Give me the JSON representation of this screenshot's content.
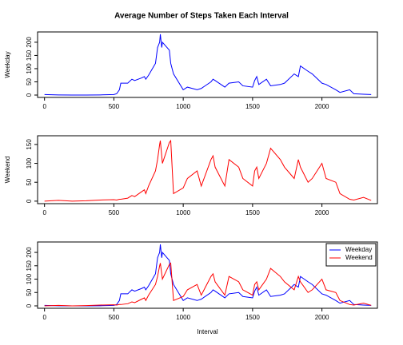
{
  "chart_data": [
    {
      "type": "line",
      "title": "Average Number of Steps Taken Each Interval",
      "y_label": "Weekday",
      "x": [
        0,
        100,
        200,
        300,
        400,
        500,
        520,
        540,
        550,
        600,
        630,
        650,
        700,
        720,
        730,
        750,
        800,
        815,
        830,
        835,
        845,
        850,
        900,
        910,
        930,
        1000,
        1030,
        1100,
        1130,
        1200,
        1215,
        1230,
        1300,
        1330,
        1400,
        1430,
        1500,
        1515,
        1530,
        1545,
        1600,
        1630,
        1700,
        1730,
        1800,
        1830,
        1845,
        1900,
        1930,
        2000,
        2030,
        2100,
        2130,
        2200,
        2230,
        2300,
        2355
      ],
      "values": [
        2,
        0.5,
        0,
        0,
        0.5,
        2,
        5,
        20,
        45,
        45,
        60,
        55,
        65,
        70,
        60,
        75,
        120,
        180,
        200,
        230,
        180,
        200,
        170,
        120,
        80,
        20,
        30,
        20,
        25,
        50,
        60,
        55,
        30,
        45,
        50,
        35,
        30,
        55,
        70,
        40,
        60,
        35,
        40,
        45,
        80,
        70,
        110,
        90,
        80,
        45,
        40,
        20,
        10,
        20,
        5,
        3,
        2
      ],
      "color": "#0000ff",
      "xlim": [
        -50,
        2400
      ],
      "xticks": [
        0,
        500,
        1000,
        1500,
        2000
      ],
      "ylim": [
        -9,
        239
      ],
      "yticks": [
        0,
        50,
        100,
        150,
        200
      ]
    },
    {
      "type": "line",
      "y_label": "Weekend",
      "x": [
        0,
        100,
        200,
        300,
        400,
        500,
        520,
        540,
        550,
        600,
        630,
        650,
        700,
        720,
        730,
        750,
        800,
        815,
        830,
        835,
        845,
        850,
        900,
        910,
        930,
        1000,
        1030,
        1100,
        1130,
        1200,
        1215,
        1230,
        1300,
        1330,
        1400,
        1430,
        1500,
        1515,
        1530,
        1545,
        1600,
        1630,
        1700,
        1730,
        1800,
        1830,
        1845,
        1900,
        1930,
        2000,
        2030,
        2100,
        2130,
        2200,
        2230,
        2300,
        2355
      ],
      "values": [
        0,
        2,
        0,
        1,
        3,
        4,
        3,
        5,
        5,
        8,
        15,
        12,
        25,
        30,
        20,
        40,
        80,
        110,
        150,
        160,
        120,
        100,
        155,
        160,
        20,
        35,
        60,
        80,
        40,
        110,
        120,
        90,
        40,
        110,
        90,
        60,
        40,
        80,
        90,
        60,
        100,
        140,
        110,
        90,
        60,
        110,
        90,
        50,
        60,
        100,
        60,
        50,
        20,
        5,
        3,
        10,
        2
      ],
      "color": "#ff0000",
      "xlim": [
        -50,
        2400
      ],
      "xticks": [
        0,
        500,
        1000,
        1500,
        2000
      ],
      "ylim": [
        -6.6,
        173
      ],
      "yticks": [
        0,
        50,
        100,
        150
      ]
    },
    {
      "type": "line",
      "x_label": "Interval",
      "legend": "topright",
      "x": [
        0,
        100,
        200,
        300,
        400,
        500,
        520,
        540,
        550,
        600,
        630,
        650,
        700,
        720,
        730,
        750,
        800,
        815,
        830,
        835,
        845,
        850,
        900,
        910,
        930,
        1000,
        1030,
        1100,
        1130,
        1200,
        1215,
        1230,
        1300,
        1330,
        1400,
        1430,
        1500,
        1515,
        1530,
        1545,
        1600,
        1630,
        1700,
        1730,
        1800,
        1830,
        1845,
        1900,
        1930,
        2000,
        2030,
        2100,
        2130,
        2200,
        2230,
        2300,
        2355
      ],
      "series": [
        {
          "name": "Weekday",
          "color": "#0000ff",
          "values": [
            2,
            0.5,
            0,
            0,
            0.5,
            2,
            5,
            20,
            45,
            45,
            60,
            55,
            65,
            70,
            60,
            75,
            120,
            180,
            200,
            230,
            180,
            200,
            170,
            120,
            80,
            20,
            30,
            20,
            25,
            50,
            60,
            55,
            30,
            45,
            50,
            35,
            30,
            55,
            70,
            40,
            60,
            35,
            40,
            45,
            80,
            70,
            110,
            90,
            80,
            45,
            40,
            20,
            10,
            20,
            5,
            3,
            2
          ]
        },
        {
          "name": "Weekend",
          "color": "#ff0000",
          "values": [
            0,
            2,
            0,
            1,
            3,
            4,
            3,
            5,
            5,
            8,
            15,
            12,
            25,
            30,
            20,
            40,
            80,
            110,
            150,
            160,
            120,
            100,
            155,
            160,
            20,
            35,
            60,
            80,
            40,
            110,
            120,
            90,
            40,
            110,
            90,
            60,
            40,
            80,
            90,
            60,
            100,
            140,
            110,
            90,
            60,
            110,
            90,
            50,
            60,
            100,
            60,
            50,
            20,
            5,
            3,
            10,
            2
          ]
        }
      ],
      "xlim": [
        -50,
        2400
      ],
      "xticks": [
        0,
        500,
        1000,
        1500,
        2000
      ],
      "ylim": [
        -9,
        239
      ],
      "yticks": [
        0,
        50,
        100,
        150,
        200
      ]
    }
  ]
}
